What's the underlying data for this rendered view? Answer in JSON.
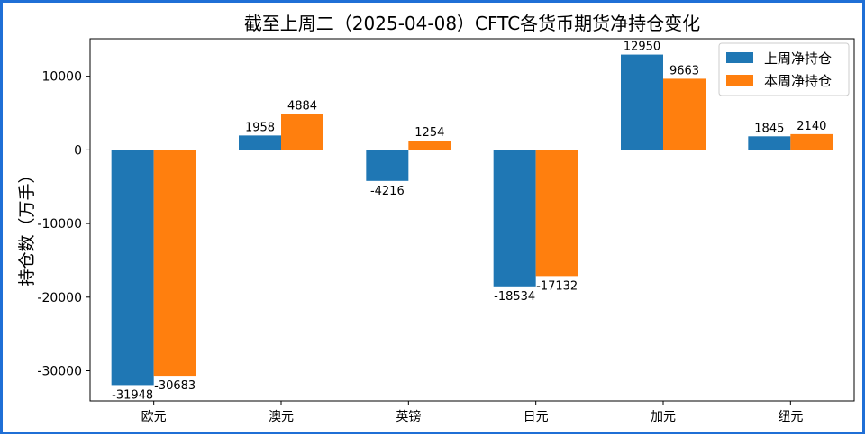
{
  "chart_data": {
    "type": "bar",
    "title": "截至上周二（2025-04-08）CFTC各货币期货净持仓变化",
    "xlabel": "",
    "ylabel": "持仓数（万手）",
    "categories": [
      "欧元",
      "澳元",
      "英镑",
      "日元",
      "加元",
      "纽元"
    ],
    "series": [
      {
        "name": "上周净持仓",
        "color": "#1f77b4",
        "values": [
          -31948,
          1958,
          -4216,
          -18534,
          12950,
          1845
        ]
      },
      {
        "name": "本周净持仓",
        "color": "#ff7f0e",
        "values": [
          -30683,
          4884,
          1254,
          -17132,
          9663,
          2140
        ]
      }
    ],
    "ylim": [
      -34100,
      15100
    ],
    "yticks": [
      -30000,
      -20000,
      -10000,
      0,
      10000
    ],
    "grid": false,
    "legend_position": "top-right"
  }
}
